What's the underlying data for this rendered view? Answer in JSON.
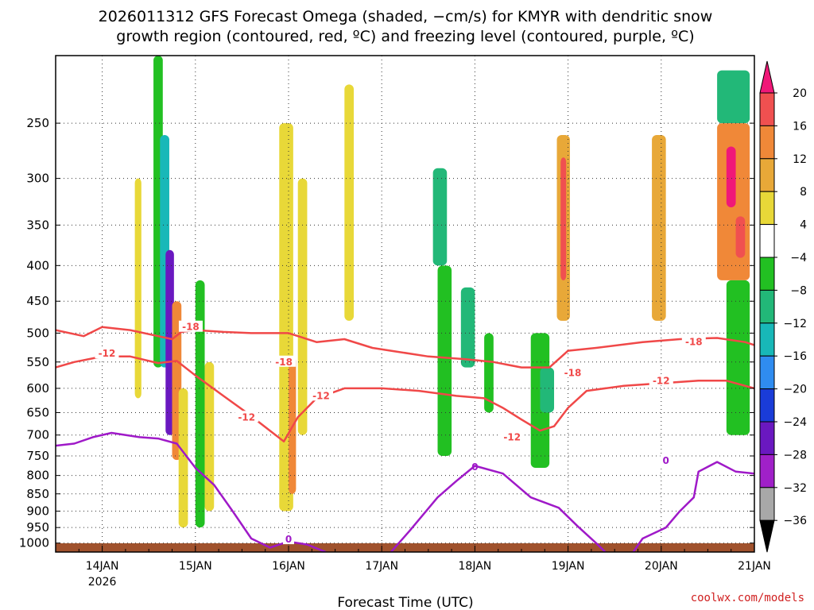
{
  "title_line1": "2026011312 GFS Forecast Omega (shaded, −cm/s) for KMYR with dendritic snow",
  "title_line2": "growth region (contoured, red, ºC) and freezing level (contoured, purple, ºC)",
  "credit": "coolwx.com/models",
  "chart_data": {
    "type": "heatmap",
    "xlabel": "Forecast Time (UTC)",
    "ylabel": "",
    "x_ticks": [
      "14JAN",
      "15JAN",
      "16JAN",
      "17JAN",
      "18JAN",
      "19JAN",
      "20JAN",
      "21JAN"
    ],
    "x_tick_days": [
      14,
      15,
      16,
      17,
      18,
      19,
      20,
      21
    ],
    "x_year_label": "2026",
    "xlim_days": [
      13.5,
      21.0
    ],
    "y_ticks": [
      250,
      300,
      350,
      400,
      450,
      500,
      550,
      600,
      650,
      700,
      750,
      800,
      850,
      900,
      950,
      1000
    ],
    "y_tick_labels": [
      "250",
      "300",
      "350",
      "400",
      "450",
      "500",
      "550",
      "600",
      "650",
      "700",
      "750",
      "800",
      "850",
      "900",
      "950",
      "1000"
    ],
    "ylim_hpa": [
      1030,
      200
    ],
    "y_scale": "log-pressure",
    "grid": true,
    "colorbar": {
      "levels": [
        20,
        16,
        12,
        8,
        4,
        -4,
        -8,
        -12,
        -16,
        -20,
        -24,
        -28,
        -32,
        -36
      ],
      "labels": [
        "20",
        "16",
        "12",
        "8",
        "4",
        "−4",
        "−8",
        "−12",
        "−16",
        "−20",
        "−24",
        "−28",
        "−32",
        "−36"
      ],
      "colors": [
        "#f01878",
        "#f05050",
        "#f08838",
        "#e8a838",
        "#e8d838",
        "#ffffff",
        "#22c022",
        "#22b878",
        "#18b8b8",
        "#2f8cf0",
        "#1a3cd8",
        "#6a18c0",
        "#a020c8",
        "#a8a8a8"
      ]
    },
    "shading_regions": [
      {
        "x": [
          14.35,
          14.42
        ],
        "p": [
          300,
          620
        ],
        "value": 6
      },
      {
        "x": [
          14.55,
          14.65
        ],
        "p": [
          200,
          560
        ],
        "value": -8
      },
      {
        "x": [
          14.62,
          14.72
        ],
        "p": [
          260,
          560
        ],
        "value": -16
      },
      {
        "x": [
          14.68,
          14.77
        ],
        "p": [
          380,
          700
        ],
        "value": -30
      },
      {
        "x": [
          14.75,
          14.85
        ],
        "p": [
          450,
          760
        ],
        "value": 14
      },
      {
        "x": [
          14.82,
          14.92
        ],
        "p": [
          600,
          950
        ],
        "value": 6
      },
      {
        "x": [
          15.0,
          15.1
        ],
        "p": [
          420,
          950
        ],
        "value": -8
      },
      {
        "x": [
          15.1,
          15.2
        ],
        "p": [
          550,
          900
        ],
        "value": 6
      },
      {
        "x": [
          15.9,
          16.05
        ],
        "p": [
          250,
          900
        ],
        "value": 6
      },
      {
        "x": [
          16.0,
          16.08
        ],
        "p": [
          540,
          850
        ],
        "value": 12
      },
      {
        "x": [
          16.1,
          16.2
        ],
        "p": [
          300,
          700
        ],
        "value": 6
      },
      {
        "x": [
          16.6,
          16.7
        ],
        "p": [
          220,
          480
        ],
        "value": 6
      },
      {
        "x": [
          17.55,
          17.7
        ],
        "p": [
          290,
          400
        ],
        "value": -12
      },
      {
        "x": [
          17.6,
          17.75
        ],
        "p": [
          400,
          750
        ],
        "value": -8
      },
      {
        "x": [
          17.85,
          18.0
        ],
        "p": [
          430,
          560
        ],
        "value": -12
      },
      {
        "x": [
          18.1,
          18.2
        ],
        "p": [
          500,
          650
        ],
        "value": -8
      },
      {
        "x": [
          18.6,
          18.8
        ],
        "p": [
          500,
          780
        ],
        "value": -8
      },
      {
        "x": [
          18.7,
          18.85
        ],
        "p": [
          560,
          650
        ],
        "value": -12
      },
      {
        "x": [
          18.88,
          19.02
        ],
        "p": [
          260,
          480
        ],
        "value": 10
      },
      {
        "x": [
          18.92,
          18.98
        ],
        "p": [
          280,
          420
        ],
        "value": 16
      },
      {
        "x": [
          19.9,
          20.05
        ],
        "p": [
          260,
          480
        ],
        "value": 8
      },
      {
        "x": [
          20.6,
          20.95
        ],
        "p": [
          210,
          250
        ],
        "value": -12
      },
      {
        "x": [
          20.6,
          20.95
        ],
        "p": [
          250,
          420
        ],
        "value": 12
      },
      {
        "x": [
          20.7,
          20.8
        ],
        "p": [
          270,
          330
        ],
        "value": 20
      },
      {
        "x": [
          20.8,
          20.9
        ],
        "p": [
          340,
          390
        ],
        "value": 18
      },
      {
        "x": [
          20.7,
          20.95
        ],
        "p": [
          420,
          700
        ],
        "value": -8
      }
    ],
    "contours": [
      {
        "name": "-18",
        "color": "#f04848",
        "labels_at": [
          [
            14.95,
            490
          ],
          [
            15.95,
            550
          ],
          [
            19.05,
            570
          ],
          [
            20.35,
            515
          ]
        ],
        "points": [
          [
            13.5,
            495
          ],
          [
            13.8,
            505
          ],
          [
            14.0,
            490
          ],
          [
            14.3,
            495
          ],
          [
            14.6,
            505
          ],
          [
            14.75,
            510
          ],
          [
            14.85,
            498
          ],
          [
            15.0,
            495
          ],
          [
            15.3,
            498
          ],
          [
            15.6,
            500
          ],
          [
            16.0,
            500
          ],
          [
            16.3,
            515
          ],
          [
            16.6,
            510
          ],
          [
            16.9,
            525
          ],
          [
            17.1,
            530
          ],
          [
            17.5,
            540
          ],
          [
            17.9,
            545
          ],
          [
            18.2,
            550
          ],
          [
            18.5,
            560
          ],
          [
            18.8,
            560
          ],
          [
            19.0,
            530
          ],
          [
            19.3,
            525
          ],
          [
            19.8,
            515
          ],
          [
            20.2,
            510
          ],
          [
            20.6,
            508
          ],
          [
            20.9,
            515
          ],
          [
            21.0,
            520
          ]
        ]
      },
      {
        "name": "-12",
        "color": "#f04848",
        "labels_at": [
          [
            14.05,
            535
          ],
          [
            15.55,
            660
          ],
          [
            16.35,
            615
          ],
          [
            18.4,
            705
          ],
          [
            20.0,
            585
          ]
        ],
        "points": [
          [
            13.5,
            560
          ],
          [
            13.7,
            550
          ],
          [
            14.0,
            540
          ],
          [
            14.3,
            540
          ],
          [
            14.6,
            552
          ],
          [
            14.8,
            548
          ],
          [
            15.0,
            575
          ],
          [
            15.3,
            615
          ],
          [
            15.55,
            650
          ],
          [
            15.8,
            690
          ],
          [
            15.95,
            715
          ],
          [
            16.1,
            660
          ],
          [
            16.3,
            620
          ],
          [
            16.6,
            600
          ],
          [
            17.0,
            600
          ],
          [
            17.4,
            605
          ],
          [
            17.8,
            615
          ],
          [
            18.1,
            620
          ],
          [
            18.3,
            640
          ],
          [
            18.5,
            665
          ],
          [
            18.7,
            690
          ],
          [
            18.85,
            680
          ],
          [
            19.0,
            640
          ],
          [
            19.2,
            605
          ],
          [
            19.6,
            595
          ],
          [
            20.0,
            590
          ],
          [
            20.4,
            585
          ],
          [
            20.7,
            585
          ],
          [
            21.0,
            600
          ]
        ]
      },
      {
        "name": "0",
        "color": "#9f19c8",
        "labels_at": [
          [
            16.0,
            988
          ],
          [
            18.0,
            778
          ],
          [
            20.05,
            762
          ]
        ],
        "points": [
          [
            13.5,
            725
          ],
          [
            13.7,
            720
          ],
          [
            13.9,
            705
          ],
          [
            14.1,
            695
          ],
          [
            14.4,
            705
          ],
          [
            14.6,
            708
          ],
          [
            14.8,
            720
          ],
          [
            15.0,
            780
          ],
          [
            15.2,
            825
          ],
          [
            15.4,
            900
          ],
          [
            15.6,
            985
          ],
          [
            15.8,
            1015
          ],
          [
            16.0,
            995
          ],
          [
            16.2,
            1005
          ],
          [
            16.4,
            1030
          ]
        ]
      },
      {
        "name": "0",
        "color": "#9f19c8",
        "labels_at": [],
        "points": [
          [
            17.1,
            1030
          ],
          [
            17.3,
            960
          ],
          [
            17.6,
            860
          ],
          [
            17.8,
            815
          ],
          [
            18.0,
            775
          ],
          [
            18.3,
            795
          ],
          [
            18.6,
            860
          ],
          [
            18.9,
            890
          ],
          [
            19.1,
            945
          ],
          [
            19.3,
            1000
          ],
          [
            19.4,
            1030
          ]
        ]
      },
      {
        "name": "0",
        "color": "#9f19c8",
        "labels_at": [],
        "points": [
          [
            19.7,
            1030
          ],
          [
            19.8,
            985
          ],
          [
            20.05,
            950
          ],
          [
            20.2,
            900
          ],
          [
            20.35,
            860
          ],
          [
            20.4,
            790
          ],
          [
            20.6,
            765
          ],
          [
            20.8,
            790
          ],
          [
            21.0,
            795
          ]
        ]
      }
    ]
  }
}
